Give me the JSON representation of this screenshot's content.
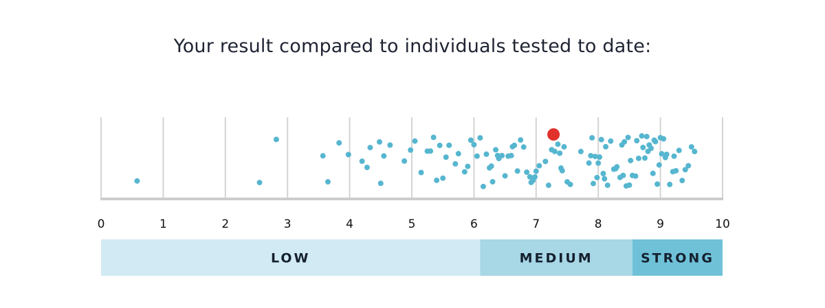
{
  "title": "Your result compared to individuals tested to date:",
  "colors": {
    "points": "#56b6cf",
    "result": "#e0322b",
    "grid": "#d4d4d4",
    "axis": "#cccccc",
    "band_low": "#d2eaf3",
    "band_medium": "#a8d7e6",
    "band_strong": "#6fc1d8"
  },
  "chart_data": {
    "type": "scatter",
    "title": "Your result compared to individuals tested to date:",
    "xlabel": "",
    "ylabel": "",
    "xlim": [
      0,
      10
    ],
    "ticks": [
      "0",
      "1",
      "2",
      "3",
      "4",
      "5",
      "6",
      "7",
      "8",
      "9",
      "10"
    ],
    "grid": true,
    "result": 7.28,
    "points": [
      0.58,
      2.55,
      2.82,
      3.57,
      3.65,
      3.83,
      3.98,
      4.2,
      4.28,
      4.33,
      4.48,
      4.5,
      4.55,
      4.65,
      4.88,
      4.98,
      5.05,
      5.15,
      5.25,
      5.3,
      5.35,
      5.4,
      5.45,
      5.5,
      5.55,
      5.6,
      5.7,
      5.75,
      5.85,
      5.9,
      5.95,
      6.0,
      6.05,
      6.1,
      6.15,
      6.2,
      6.25,
      6.28,
      6.3,
      6.35,
      6.38,
      6.4,
      6.45,
      6.5,
      6.55,
      6.6,
      6.62,
      6.65,
      6.7,
      6.75,
      6.8,
      6.85,
      6.9,
      6.92,
      6.95,
      6.98,
      7.0,
      7.05,
      7.15,
      7.2,
      7.25,
      7.3,
      7.35,
      7.38,
      7.4,
      7.42,
      7.45,
      7.5,
      7.55,
      7.72,
      7.85,
      7.88,
      7.9,
      7.92,
      7.95,
      7.98,
      8.0,
      8.02,
      8.05,
      8.08,
      8.1,
      8.12,
      8.15,
      8.2,
      8.25,
      8.28,
      8.3,
      8.35,
      8.38,
      8.4,
      8.42,
      8.45,
      8.48,
      8.5,
      8.52,
      8.55,
      8.6,
      8.62,
      8.65,
      8.7,
      8.72,
      8.75,
      8.78,
      8.8,
      8.82,
      8.85,
      8.88,
      8.9,
      8.92,
      8.95,
      8.98,
      9.0,
      9.02,
      9.05,
      9.08,
      9.1,
      9.15,
      9.2,
      9.22,
      9.25,
      9.3,
      9.35,
      9.4,
      9.45,
      9.5,
      9.55
    ],
    "bands": [
      {
        "label": "LOW",
        "from": 0,
        "to": 6.1
      },
      {
        "label": "MEDIUM",
        "from": 6.1,
        "to": 8.55
      },
      {
        "label": "STRONG",
        "from": 8.55,
        "to": 10
      }
    ]
  }
}
